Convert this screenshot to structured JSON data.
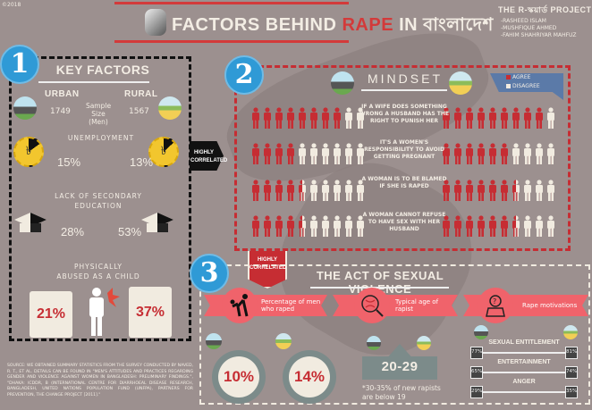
{
  "copyright": "©2018",
  "header": {
    "title_part1": "FACTORS BEHIND ",
    "title_highlight": "RAPE",
    "title_part2": " IN বাংলাদেশ",
    "accent": "#d33a3a"
  },
  "project": {
    "name": "THE R-স্কয়ার্ড PROJECT",
    "authors": [
      "-RASHEED ISLAM",
      "-MUSHFIQUE AHMED",
      "-FAHIM SHAHRIYAR MAHFUZ"
    ]
  },
  "section1": {
    "number": "1",
    "title": "KEY FACTORS",
    "urban_label": "URBAN",
    "rural_label": "RURAL",
    "sample_label": "Sample Size",
    "sample_sub": "(Men)",
    "urban_sample": "1749",
    "rural_sample": "1567",
    "unemployment": {
      "label": "UNEMPLOYMENT",
      "urban": "15%",
      "rural": "13%",
      "urban_value": 15,
      "rural_value": 13,
      "currency_symbol": "৳"
    },
    "education": {
      "label_line1": "LACK OF SECONDARY",
      "label_line2": "EDUCATION",
      "urban": "28%",
      "rural": "53%"
    },
    "abuse": {
      "label_line1": "PHYSICALLY",
      "label_line2": "ABUSED AS A CHILD",
      "urban": "21%",
      "rural": "37%"
    }
  },
  "highly_correlated_1": {
    "line1": "HIGHLY",
    "line2": "CORRELATED"
  },
  "section2": {
    "number": "2",
    "title": "MINDSET",
    "legend": {
      "agree": "AGREE",
      "disagree": "DISAGREE",
      "agree_color": "#c62d33",
      "disagree_color": "#f1ebe0"
    },
    "rows": [
      {
        "statement": "IF A WIFE DOES SOMETHING WRONG A HUSBAND HAS THE RIGHT TO PUNISH HER",
        "urban_agree": 8,
        "rural_agree": 9
      },
      {
        "statement": "IT'S A WOMEN'S RESPONSIBILITY TO AVOID GETTING PREGNANT",
        "urban_agree": 4,
        "rural_agree": 6
      },
      {
        "statement": "A WOMAN IS TO BE BLAMED IF SHE IS RAPED",
        "urban_agree": 4.5,
        "rural_agree": 6.5
      },
      {
        "statement": "A WOMAN CANNOT REFUSE TO HAVE SEX WITH HER HUSBAND",
        "urban_agree": 4.5,
        "rural_agree": 6.5
      }
    ]
  },
  "highly_correlated_2": {
    "line1": "HIGHLY",
    "line2": "CORRELATED"
  },
  "section3": {
    "number": "3",
    "title": "THE ACT OF SEXUAL VIOLENCE",
    "men_raped": {
      "label": "Percentage of men who raped",
      "urban": "10%",
      "rural": "14%"
    },
    "age": {
      "label": "Typical age of rapist",
      "value": "20-29",
      "note": "*30-35% of new rapists are below 19"
    },
    "motivations": {
      "label": "Rape motivations",
      "items": [
        {
          "name": "SEXUAL ENTITLEMENT",
          "urban": "77%",
          "rural": "81%"
        },
        {
          "name": "ENTERTAINMENT",
          "urban": "65%",
          "rural": "74%"
        },
        {
          "name": "ANGER",
          "urban": "29%",
          "rural": "35%"
        }
      ]
    }
  },
  "source": "SOURCE: WE OBTAINED SUMMARY STATISTICS FROM THE SURVEY CONDUCTED BY NAVED, R. T., ET AL. DETAILS CAN BE FOUND IN \"MEN'S ATTITUDES AND PRACTICES REGARDING GENDER AND VIOLENCE AGAINST WOMEN IN BANGLADESH: PRELIMINARY FINDINGS.\", \"DHAKA: ICDDR, B (INTERNATIONAL CENTRE FOR DIARRHOEAL DISEASE RESEARCH, BANGLADESH, UNITED NATIONS POPULATION FUND (UNFPA), PARTNERS FOR PREVENTION, THE CHANGE PROJECT [2011].\""
}
